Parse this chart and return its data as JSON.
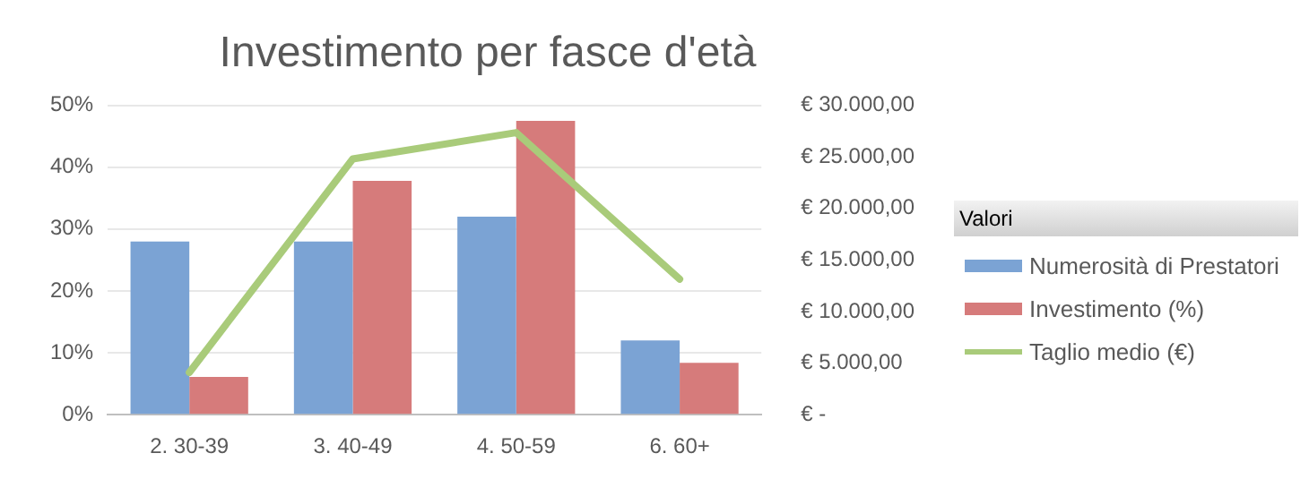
{
  "chart_data": {
    "type": "bar",
    "title": "Investimento per fasce d'età",
    "legend_title": "Valori",
    "categories": [
      "2. 30-39",
      "3. 40-49",
      "4. 50-59",
      "6. 60+"
    ],
    "series": [
      {
        "name": "Numerosità di Prestatori",
        "color": "#7ba3d4",
        "values": [
          28,
          28,
          32,
          12
        ]
      },
      {
        "name": "Investimento (%)",
        "color": "#d67b7b",
        "values": [
          6.1,
          37.8,
          47.5,
          8.4
        ]
      },
      {
        "name": "Taglio medio (€)",
        "color": "#a9cb7a",
        "type": "line",
        "axis": "y2",
        "values": [
          4100,
          24800,
          27350,
          13150
        ]
      }
    ],
    "ylim": [
      0,
      50
    ],
    "yticks": [
      {
        "value": 0,
        "label": "0%"
      },
      {
        "value": 10,
        "label": "10%"
      },
      {
        "value": 20,
        "label": "20%"
      },
      {
        "value": 30,
        "label": "30%"
      },
      {
        "value": 40,
        "label": "40%"
      },
      {
        "value": 50,
        "label": "50%"
      }
    ],
    "y2lim": [
      0,
      30000
    ],
    "y2ticks": [
      {
        "value": 0,
        "label": "€ -"
      },
      {
        "value": 5000,
        "label": "€ 5.000,00"
      },
      {
        "value": 10000,
        "label": "€ 10.000,00"
      },
      {
        "value": 15000,
        "label": "€ 15.000,00"
      },
      {
        "value": 20000,
        "label": "€ 20.000,00"
      },
      {
        "value": 25000,
        "label": "€ 25.000,00"
      },
      {
        "value": 30000,
        "label": "€ 30.000,00"
      }
    ],
    "grid": "y",
    "legend": "right",
    "marker": "none"
  }
}
